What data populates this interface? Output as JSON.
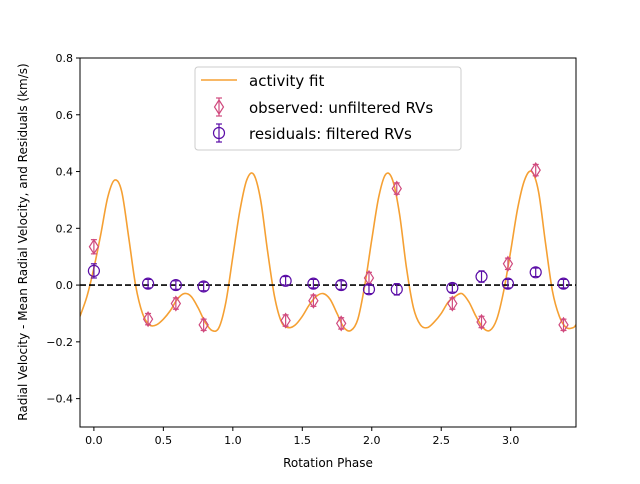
{
  "chart_data": {
    "type": "scatter",
    "xlabel": "Rotation Phase",
    "ylabel": "Radial Velocity - Mean Radial Velocity, and Residuals (km/s)",
    "xlim": [
      -0.1,
      3.47
    ],
    "ylim": [
      -0.5,
      0.8
    ],
    "xticks": [
      0.0,
      0.5,
      1.0,
      1.5,
      2.0,
      2.5,
      3.0
    ],
    "xtick_labels": [
      "0.0",
      "0.5",
      "1.0",
      "1.5",
      "2.0",
      "2.5",
      "3.0"
    ],
    "yticks": [
      -0.4,
      -0.2,
      0.0,
      0.2,
      0.4,
      0.6,
      0.8
    ],
    "ytick_labels": [
      "−0.4",
      "−0.2",
      "0.0",
      "0.2",
      "0.4",
      "0.6",
      "0.8"
    ],
    "grid": false,
    "legend_position": "top-center",
    "reference_line": {
      "y": 0.0,
      "style": "dashed",
      "color": "#000000"
    },
    "fit_line": {
      "name": "activity fit",
      "color": "#f5a033",
      "x": [
        -0.1,
        -0.05,
        0.0,
        0.05,
        0.1,
        0.15,
        0.2,
        0.25,
        0.3,
        0.35,
        0.4,
        0.45,
        0.5,
        0.55,
        0.6,
        0.65,
        0.7,
        0.75,
        0.8,
        0.85,
        0.9,
        0.95,
        1.0,
        1.05,
        1.1,
        1.15,
        1.2,
        1.25,
        1.3,
        1.35,
        1.4,
        1.45,
        1.5,
        1.55,
        1.6,
        1.65,
        1.7,
        1.75,
        1.8,
        1.85,
        1.9,
        1.95,
        2.0,
        2.05,
        2.1,
        2.15,
        2.2,
        2.25,
        2.3,
        2.35,
        2.4,
        2.45,
        2.5,
        2.55,
        2.6,
        2.65,
        2.7,
        2.75,
        2.8,
        2.85,
        2.9,
        2.95,
        3.0,
        3.05,
        3.1,
        3.15,
        3.2,
        3.25,
        3.3,
        3.35,
        3.4,
        3.45,
        3.47
      ],
      "y": [
        -0.11,
        -0.04,
        0.06,
        0.18,
        0.31,
        0.37,
        0.33,
        0.17,
        0.0,
        -0.1,
        -0.14,
        -0.14,
        -0.12,
        -0.09,
        -0.05,
        -0.03,
        -0.04,
        -0.08,
        -0.13,
        -0.16,
        -0.15,
        -0.06,
        0.1,
        0.26,
        0.37,
        0.39,
        0.3,
        0.12,
        -0.04,
        -0.13,
        -0.15,
        -0.14,
        -0.11,
        -0.07,
        -0.04,
        -0.03,
        -0.05,
        -0.1,
        -0.15,
        -0.16,
        -0.12,
        0.0,
        0.16,
        0.31,
        0.39,
        0.37,
        0.25,
        0.06,
        -0.08,
        -0.14,
        -0.15,
        -0.13,
        -0.1,
        -0.06,
        -0.04,
        -0.03,
        -0.06,
        -0.11,
        -0.15,
        -0.16,
        -0.12,
        -0.02,
        0.12,
        0.27,
        0.37,
        0.4,
        0.33,
        0.15,
        -0.02,
        -0.11,
        -0.15,
        -0.15,
        -0.14
      ]
    },
    "series": [
      {
        "name": "observed: unfiltered RVs",
        "marker": "thin-diamond",
        "color": "#d04a7e",
        "x": [
          0.0,
          0.39,
          0.59,
          0.79,
          1.38,
          1.58,
          1.78,
          1.98,
          2.18,
          2.58,
          2.79,
          2.98,
          3.18,
          3.38
        ],
        "y": [
          0.135,
          -0.12,
          -0.065,
          -0.14,
          -0.125,
          -0.055,
          -0.135,
          0.025,
          0.34,
          -0.065,
          -0.13,
          0.075,
          0.405,
          -0.14
        ],
        "yerr": [
          0.025,
          0.02,
          0.02,
          0.02,
          0.02,
          0.02,
          0.02,
          0.02,
          0.02,
          0.02,
          0.02,
          0.02,
          0.02,
          0.02
        ]
      },
      {
        "name": "residuals: filtered RVs",
        "marker": "circle",
        "color": "#5a0ca6",
        "x": [
          0.0,
          0.39,
          0.59,
          0.79,
          1.38,
          1.58,
          1.78,
          1.98,
          2.18,
          2.58,
          2.79,
          2.98,
          3.18,
          3.38
        ],
        "y": [
          0.05,
          0.005,
          0.0,
          -0.005,
          0.015,
          0.005,
          0.0,
          -0.015,
          -0.015,
          -0.01,
          0.03,
          0.005,
          0.045,
          0.005
        ],
        "yerr": [
          0.025,
          0.015,
          0.015,
          0.015,
          0.015,
          0.015,
          0.015,
          0.015,
          0.02,
          0.015,
          0.02,
          0.015,
          0.015,
          0.015
        ]
      }
    ],
    "legend": {
      "fit_label": "activity fit",
      "observed_label": "observed: unfiltered RVs",
      "residual_label": "residuals: filtered RVs"
    }
  }
}
